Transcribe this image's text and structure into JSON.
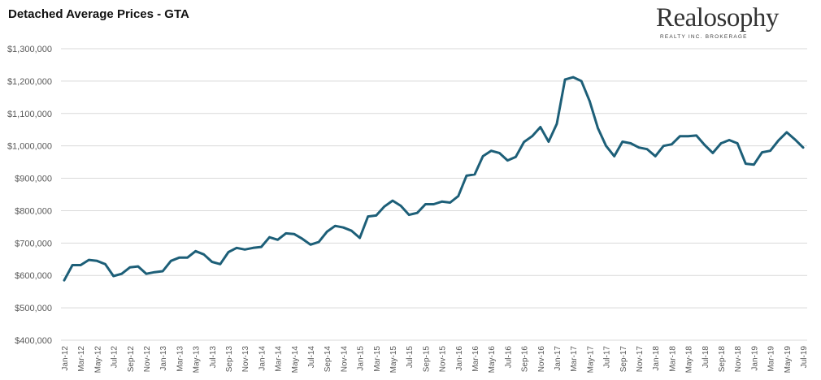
{
  "title": "Detached Average Prices - GTA",
  "logo": {
    "name": "Realosophy",
    "tagline": "REALTY INC. BROKERAGE"
  },
  "colors": {
    "line": "#1d5f78",
    "grid": "#d9d9d9",
    "axis_text": "#595959"
  },
  "chart_data": {
    "type": "line",
    "title": "Detached Average Prices - GTA",
    "xlabel": "",
    "ylabel": "",
    "ylim": [
      400000,
      1300000
    ],
    "yticks": [
      400000,
      500000,
      600000,
      700000,
      800000,
      900000,
      1000000,
      1100000,
      1200000,
      1300000
    ],
    "ytick_labels": [
      "$400,000",
      "$500,000",
      "$600,000",
      "$700,000",
      "$800,000",
      "$900,000",
      "$1,000,000",
      "$1,100,000",
      "$1,200,000",
      "$1,300,000"
    ],
    "xtick_labels": [
      "Jan-12",
      "Mar-12",
      "May-12",
      "Jul-12",
      "Sep-12",
      "Nov-12",
      "Jan-13",
      "Mar-13",
      "May-13",
      "Jul-13",
      "Sep-13",
      "Nov-13",
      "Jan-14",
      "Mar-14",
      "May-14",
      "Jul-14",
      "Sep-14",
      "Nov-14",
      "Jan-15",
      "Mar-15",
      "May-15",
      "Jul-15",
      "Sep-15",
      "Nov-15",
      "Jan-16",
      "Mar-16",
      "May-16",
      "Jul-16",
      "Sep-16",
      "Nov-16",
      "Jan-17",
      "Mar-17",
      "May-17",
      "Jul-17",
      "Sep-17",
      "Nov-17",
      "Jan-18",
      "Mar-18",
      "May-18",
      "Jul-18",
      "Sep-18",
      "Nov-18",
      "Jan-19",
      "Mar-19",
      "May-19",
      "Jul-19"
    ],
    "grid": true,
    "legend": "none",
    "series": [
      {
        "x": [
          "Jan-12",
          "Feb-12",
          "Mar-12",
          "Apr-12",
          "May-12",
          "Jun-12",
          "Jul-12",
          "Aug-12",
          "Sep-12",
          "Oct-12",
          "Nov-12",
          "Dec-12",
          "Jan-13",
          "Feb-13",
          "Mar-13",
          "Apr-13",
          "May-13",
          "Jun-13",
          "Jul-13",
          "Aug-13",
          "Sep-13",
          "Oct-13",
          "Nov-13",
          "Dec-13",
          "Jan-14",
          "Feb-14",
          "Mar-14",
          "Apr-14",
          "May-14",
          "Jun-14",
          "Jul-14",
          "Aug-14",
          "Sep-14",
          "Oct-14",
          "Nov-14",
          "Dec-14",
          "Jan-15",
          "Feb-15",
          "Mar-15",
          "Apr-15",
          "May-15",
          "Jun-15",
          "Jul-15",
          "Aug-15",
          "Sep-15",
          "Oct-15",
          "Nov-15",
          "Dec-15",
          "Jan-16",
          "Feb-16",
          "Mar-16",
          "Apr-16",
          "May-16",
          "Jun-16",
          "Jul-16",
          "Aug-16",
          "Sep-16",
          "Oct-16",
          "Nov-16",
          "Dec-16",
          "Jan-17",
          "Feb-17",
          "Mar-17",
          "Apr-17",
          "May-17",
          "Jun-17",
          "Jul-17",
          "Aug-17",
          "Sep-17",
          "Oct-17",
          "Nov-17",
          "Dec-17",
          "Jan-18",
          "Feb-18",
          "Mar-18",
          "Apr-18",
          "May-18",
          "Jun-18",
          "Jul-18",
          "Aug-18",
          "Sep-18",
          "Oct-18",
          "Nov-18",
          "Dec-18",
          "Jan-19",
          "Feb-19",
          "Mar-19",
          "Apr-19",
          "May-19",
          "Jun-19",
          "Jul-19"
        ],
        "values": [
          585000,
          632000,
          632000,
          648000,
          645000,
          635000,
          598000,
          605000,
          625000,
          628000,
          605000,
          610000,
          613000,
          645000,
          655000,
          655000,
          675000,
          665000,
          642000,
          635000,
          672000,
          685000,
          680000,
          685000,
          688000,
          718000,
          710000,
          730000,
          728000,
          713000,
          695000,
          703000,
          735000,
          753000,
          748000,
          738000,
          716000,
          782000,
          785000,
          813000,
          831000,
          815000,
          787000,
          793000,
          820000,
          820000,
          828000,
          825000,
          845000,
          908000,
          912000,
          968000,
          985000,
          978000,
          955000,
          966000,
          1012000,
          1030000,
          1058000,
          1013000,
          1068000,
          1205000,
          1212000,
          1200000,
          1138000,
          1055000,
          1000000,
          968000,
          1013000,
          1008000,
          995000,
          990000,
          968000,
          1000000,
          1005000,
          1030000,
          1030000,
          1032000,
          1003000,
          978000,
          1008000,
          1018000,
          1008000,
          945000,
          942000,
          980000,
          985000,
          1017000,
          1042000,
          1020000,
          995000
        ]
      }
    ]
  }
}
